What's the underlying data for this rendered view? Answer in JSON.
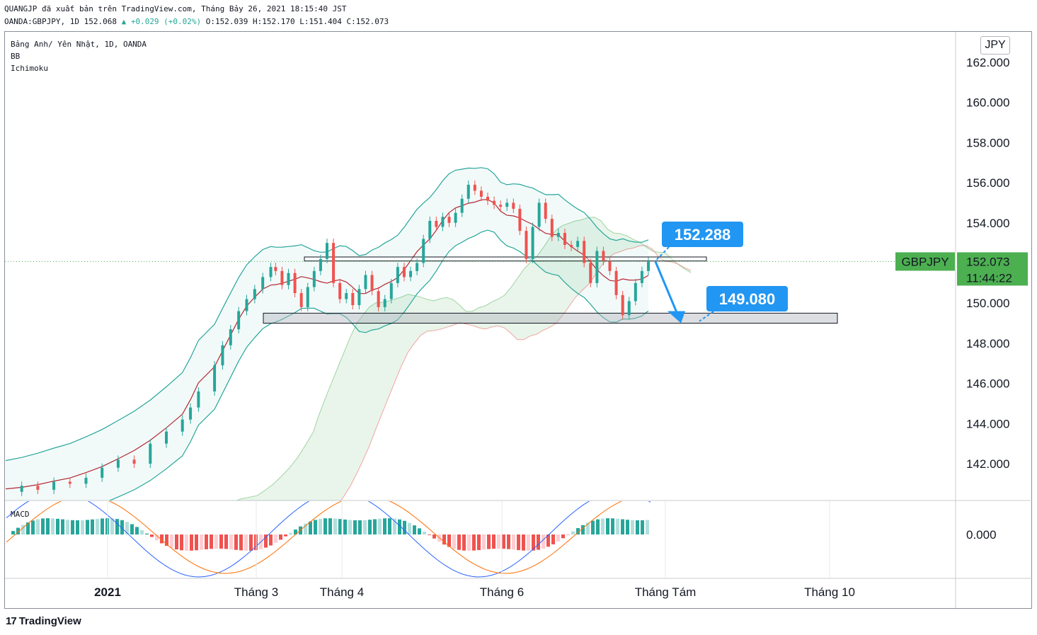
{
  "header": {
    "line1": "QUANGJP đã xuất bản trên TradingView.com, Tháng Bảy 26, 2021 18:15:40 JST",
    "symbol_prefix": "OANDA:GBPJPY, 1D 152.068",
    "change": "▲ +0.029 (+0.02%)",
    "ohlc_rest": "O:152.039 H:152.170 L:151.404 C:152.073"
  },
  "legend": {
    "title": "Bảng Anh/ Yên Nhật, 1D, OANDA",
    "bb": "BB",
    "ichimoku": "Ichimoku",
    "macd": "MACD"
  },
  "axis": {
    "currency": "JPY",
    "symbol_tag": "GBPJPY",
    "last_price": "152.073",
    "countdown": "11:44:22"
  },
  "annotations": {
    "upper_label": "152.288",
    "lower_label": "149.080"
  },
  "footer": {
    "brand": "TradingView"
  },
  "colors": {
    "up": "#26a69a",
    "down": "#ef5350",
    "callout": "#2196f3",
    "price_tag": "#4caf50"
  },
  "chart_data": {
    "type": "candlestick",
    "instrument": "GBPJPY",
    "timeframe": "1D",
    "ylim": [
      140.2,
      163.0
    ],
    "y_ticks": [
      162,
      160,
      158,
      156,
      154,
      152,
      150,
      148,
      146,
      144,
      142
    ],
    "y_tick_labels": [
      "162.000",
      "160.000",
      "158.000",
      "156.000",
      "154.000",
      "152.000",
      "150.000",
      "148.000",
      "146.000",
      "144.000",
      "142.000"
    ],
    "x_labels": [
      "2021",
      "Tháng 3",
      "Tháng 4",
      "Tháng 6",
      "Tháng Tám",
      "Tháng 10"
    ],
    "last_close": 152.073,
    "resistance_zone": [
      152.1,
      152.3
    ],
    "support_zone": [
      149.0,
      149.5
    ],
    "projection": {
      "from": 152.288,
      "to": 149.08
    },
    "price_path": [
      [
        0,
        140.6
      ],
      [
        10,
        140.9
      ],
      [
        20,
        140.7
      ],
      [
        30,
        141.1
      ],
      [
        40,
        141.0
      ],
      [
        50,
        141.3
      ],
      [
        60,
        141.8
      ],
      [
        70,
        142.2
      ],
      [
        80,
        142.0
      ],
      [
        90,
        143.0
      ],
      [
        100,
        143.6
      ],
      [
        110,
        144.2
      ],
      [
        115,
        144.8
      ],
      [
        120,
        145.6
      ],
      [
        130,
        146.9
      ],
      [
        135,
        147.9
      ],
      [
        140,
        148.7
      ],
      [
        145,
        149.6
      ],
      [
        150,
        150.2
      ],
      [
        155,
        150.7
      ],
      [
        160,
        151.3
      ],
      [
        165,
        151.8
      ],
      [
        168,
        151.6
      ],
      [
        172,
        150.9
      ],
      [
        176,
        151.5
      ],
      [
        180,
        150.5
      ],
      [
        184,
        149.8
      ],
      [
        188,
        150.8
      ],
      [
        192,
        151.6
      ],
      [
        196,
        152.2
      ],
      [
        200,
        153.0
      ],
      [
        204,
        151.0
      ],
      [
        208,
        150.2
      ],
      [
        212,
        150.5
      ],
      [
        216,
        149.9
      ],
      [
        220,
        150.7
      ],
      [
        224,
        151.4
      ],
      [
        228,
        150.6
      ],
      [
        232,
        149.8
      ],
      [
        236,
        150.2
      ],
      [
        240,
        151.0
      ],
      [
        244,
        151.8
      ],
      [
        248,
        151.3
      ],
      [
        252,
        151.6
      ],
      [
        256,
        152.0
      ],
      [
        260,
        153.2
      ],
      [
        264,
        154.1
      ],
      [
        268,
        153.8
      ],
      [
        272,
        154.3
      ],
      [
        276,
        154.0
      ],
      [
        280,
        154.5
      ],
      [
        284,
        155.2
      ],
      [
        288,
        155.9
      ],
      [
        292,
        155.6
      ],
      [
        296,
        155.3
      ],
      [
        300,
        155.1
      ],
      [
        304,
        154.9
      ],
      [
        308,
        154.8
      ],
      [
        312,
        155.0
      ],
      [
        316,
        154.7
      ],
      [
        320,
        153.6
      ],
      [
        324,
        152.2
      ],
      [
        328,
        153.8
      ],
      [
        332,
        155.0
      ],
      [
        336,
        154.2
      ],
      [
        340,
        153.3
      ],
      [
        344,
        153.5
      ],
      [
        348,
        152.9
      ],
      [
        352,
        152.8
      ],
      [
        356,
        153.1
      ],
      [
        360,
        152.0
      ],
      [
        364,
        151.0
      ],
      [
        368,
        152.6
      ],
      [
        372,
        152.1
      ],
      [
        376,
        151.6
      ],
      [
        380,
        150.4
      ],
      [
        384,
        149.4
      ],
      [
        388,
        150.1
      ],
      [
        392,
        151.0
      ],
      [
        396,
        151.6
      ],
      [
        400,
        152.07
      ]
    ],
    "macd": {
      "ylim": [
        -0.7,
        0.7
      ],
      "zero_label": "0.000"
    }
  }
}
